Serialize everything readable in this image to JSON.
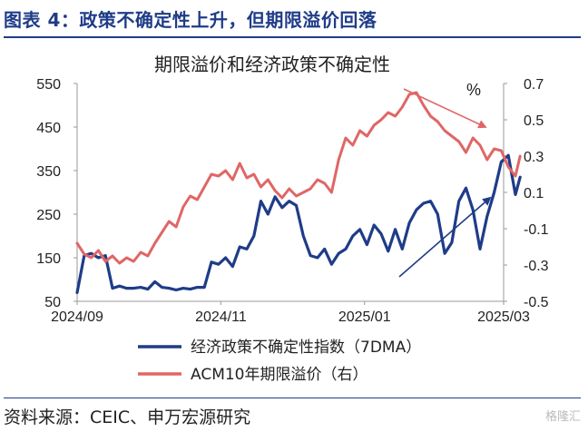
{
  "page": {
    "figure_title": "图表 4：政策不确定性上升，但期限溢价回落",
    "source": "资料来源：CEIC、申万宏源研究",
    "watermark": "格隆汇"
  },
  "colors": {
    "left_series": "#1f3c88",
    "right_series": "#e06666",
    "accent": "#1f3c88"
  },
  "chart_data": {
    "type": "line",
    "title": "期限溢价和经济政策不确定性",
    "right_unit": "%",
    "x_ticks": [
      "2024/09",
      "2024/11",
      "2025/01",
      "2025/03"
    ],
    "y_left": {
      "ticks": [
        50,
        150,
        250,
        350,
        450,
        550
      ],
      "ylim": [
        50,
        550
      ]
    },
    "y_right": {
      "ticks": [
        -0.5,
        -0.3,
        -0.1,
        0.1,
        0.3,
        0.5,
        0.7
      ],
      "ylim": [
        -0.5,
        0.7
      ]
    },
    "grid": false,
    "legend_position": "bottom",
    "series": [
      {
        "name": "经济政策不确定性指数（7DMA）",
        "axis": "left",
        "color": "#1f3c88",
        "x": [
          "2024-09-01",
          "2024-09-04",
          "2024-09-07",
          "2024-09-10",
          "2024-09-13",
          "2024-09-16",
          "2024-09-19",
          "2024-09-22",
          "2024-09-25",
          "2024-09-28",
          "2024-10-01",
          "2024-10-04",
          "2024-10-07",
          "2024-10-10",
          "2024-10-13",
          "2024-10-16",
          "2024-10-19",
          "2024-10-22",
          "2024-10-25",
          "2024-10-28",
          "2024-10-31",
          "2024-11-03",
          "2024-11-06",
          "2024-11-09",
          "2024-11-12",
          "2024-11-15",
          "2024-11-18",
          "2024-11-21",
          "2024-11-24",
          "2024-11-27",
          "2024-11-30",
          "2024-12-03",
          "2024-12-06",
          "2024-12-09",
          "2024-12-12",
          "2024-12-15",
          "2024-12-18",
          "2024-12-21",
          "2024-12-24",
          "2024-12-27",
          "2024-12-30",
          "2025-01-02",
          "2025-01-05",
          "2025-01-08",
          "2025-01-11",
          "2025-01-14",
          "2025-01-17",
          "2025-01-20",
          "2025-01-23",
          "2025-01-26",
          "2025-01-29",
          "2025-02-01",
          "2025-02-04",
          "2025-02-07",
          "2025-02-10",
          "2025-02-13",
          "2025-02-16",
          "2025-02-19",
          "2025-02-22",
          "2025-02-25",
          "2025-02-28",
          "2025-03-03",
          "2025-03-06",
          "2025-03-08"
        ],
        "values": [
          70,
          155,
          160,
          150,
          155,
          80,
          85,
          80,
          80,
          82,
          78,
          95,
          82,
          80,
          76,
          80,
          78,
          82,
          82,
          140,
          135,
          150,
          130,
          175,
          170,
          200,
          280,
          250,
          290,
          265,
          280,
          270,
          200,
          155,
          150,
          170,
          135,
          160,
          170,
          200,
          215,
          180,
          225,
          205,
          165,
          215,
          170,
          230,
          260,
          275,
          280,
          250,
          160,
          185,
          280,
          310,
          260,
          170,
          245,
          300,
          370,
          385,
          295,
          335
        ]
      },
      {
        "name": "ACM10年期限溢价（右）",
        "axis": "right",
        "color": "#e06666",
        "x": [
          "2024-09-01",
          "2024-09-04",
          "2024-09-07",
          "2024-09-10",
          "2024-09-13",
          "2024-09-16",
          "2024-09-19",
          "2024-09-22",
          "2024-09-25",
          "2024-09-28",
          "2024-10-01",
          "2024-10-04",
          "2024-10-07",
          "2024-10-10",
          "2024-10-13",
          "2024-10-16",
          "2024-10-19",
          "2024-10-22",
          "2024-10-25",
          "2024-10-28",
          "2024-10-31",
          "2024-11-03",
          "2024-11-06",
          "2024-11-09",
          "2024-11-12",
          "2024-11-15",
          "2024-11-18",
          "2024-11-21",
          "2024-11-24",
          "2024-11-27",
          "2024-11-30",
          "2024-12-03",
          "2024-12-06",
          "2024-12-09",
          "2024-12-12",
          "2024-12-15",
          "2024-12-18",
          "2024-12-21",
          "2024-12-24",
          "2024-12-27",
          "2024-12-30",
          "2025-01-02",
          "2025-01-05",
          "2025-01-08",
          "2025-01-11",
          "2025-01-14",
          "2025-01-17",
          "2025-01-20",
          "2025-01-23",
          "2025-01-26",
          "2025-01-29",
          "2025-02-01",
          "2025-02-04",
          "2025-02-07",
          "2025-02-10",
          "2025-02-13",
          "2025-02-16",
          "2025-02-19",
          "2025-02-22",
          "2025-02-25",
          "2025-02-28",
          "2025-03-03",
          "2025-03-06",
          "2025-03-08"
        ],
        "values": [
          -0.18,
          -0.24,
          -0.26,
          -0.22,
          -0.28,
          -0.25,
          -0.29,
          -0.26,
          -0.28,
          -0.23,
          -0.25,
          -0.18,
          -0.12,
          -0.06,
          -0.09,
          0.02,
          0.08,
          0.06,
          0.13,
          0.2,
          0.19,
          0.22,
          0.17,
          0.26,
          0.18,
          0.2,
          0.13,
          0.17,
          0.11,
          0.07,
          0.12,
          0.08,
          0.1,
          0.12,
          0.17,
          0.15,
          0.1,
          0.28,
          0.4,
          0.36,
          0.44,
          0.41,
          0.47,
          0.5,
          0.54,
          0.52,
          0.57,
          0.64,
          0.65,
          0.58,
          0.52,
          0.49,
          0.44,
          0.41,
          0.38,
          0.32,
          0.4,
          0.36,
          0.28,
          0.34,
          0.33,
          0.24,
          0.19,
          0.3
        ]
      }
    ]
  }
}
